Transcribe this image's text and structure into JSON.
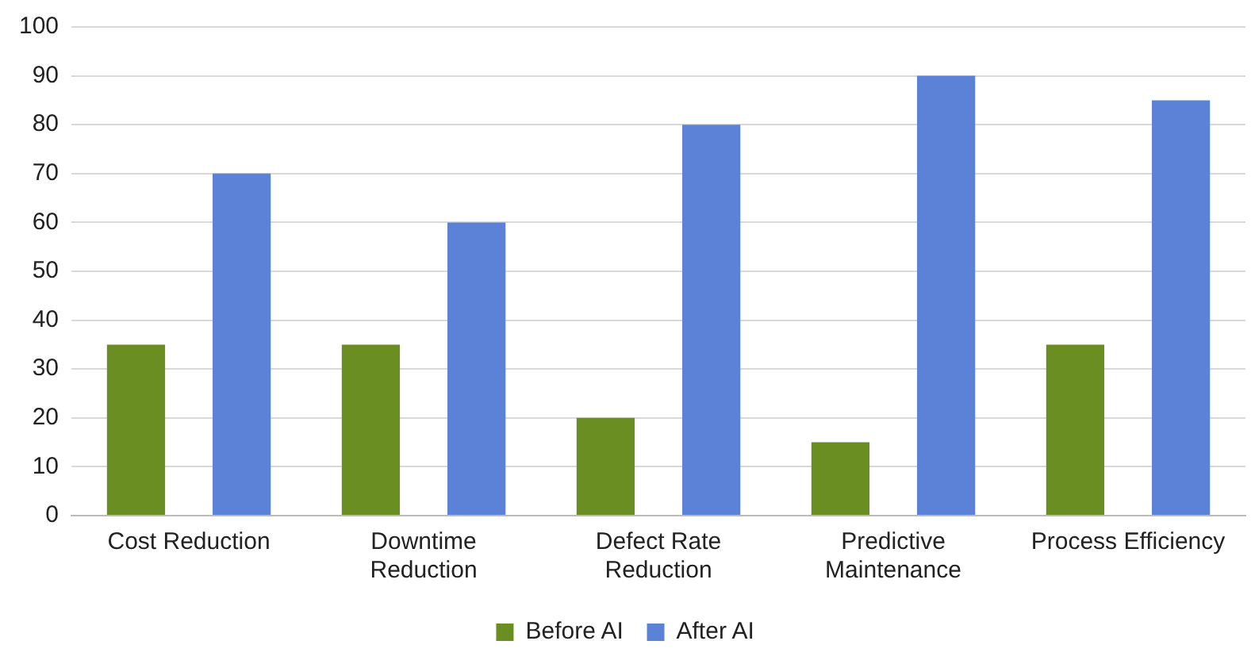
{
  "chart_data": {
    "type": "bar",
    "categories": [
      "Cost Reduction",
      "Downtime Reduction",
      "Defect Rate Reduction",
      "Predictive Maintenance",
      "Process Efficiency"
    ],
    "series": [
      {
        "name": "Before AI",
        "color": "#6b8e23",
        "values": [
          35,
          35,
          20,
          15,
          35
        ]
      },
      {
        "name": "After AI",
        "color": "#5b82d6",
        "values": [
          70,
          60,
          80,
          90,
          85
        ]
      }
    ],
    "ylim": [
      0,
      100
    ],
    "yticks": [
      0,
      10,
      20,
      30,
      40,
      50,
      60,
      70,
      80,
      90,
      100
    ],
    "grid": "y",
    "legend": "bottom"
  }
}
